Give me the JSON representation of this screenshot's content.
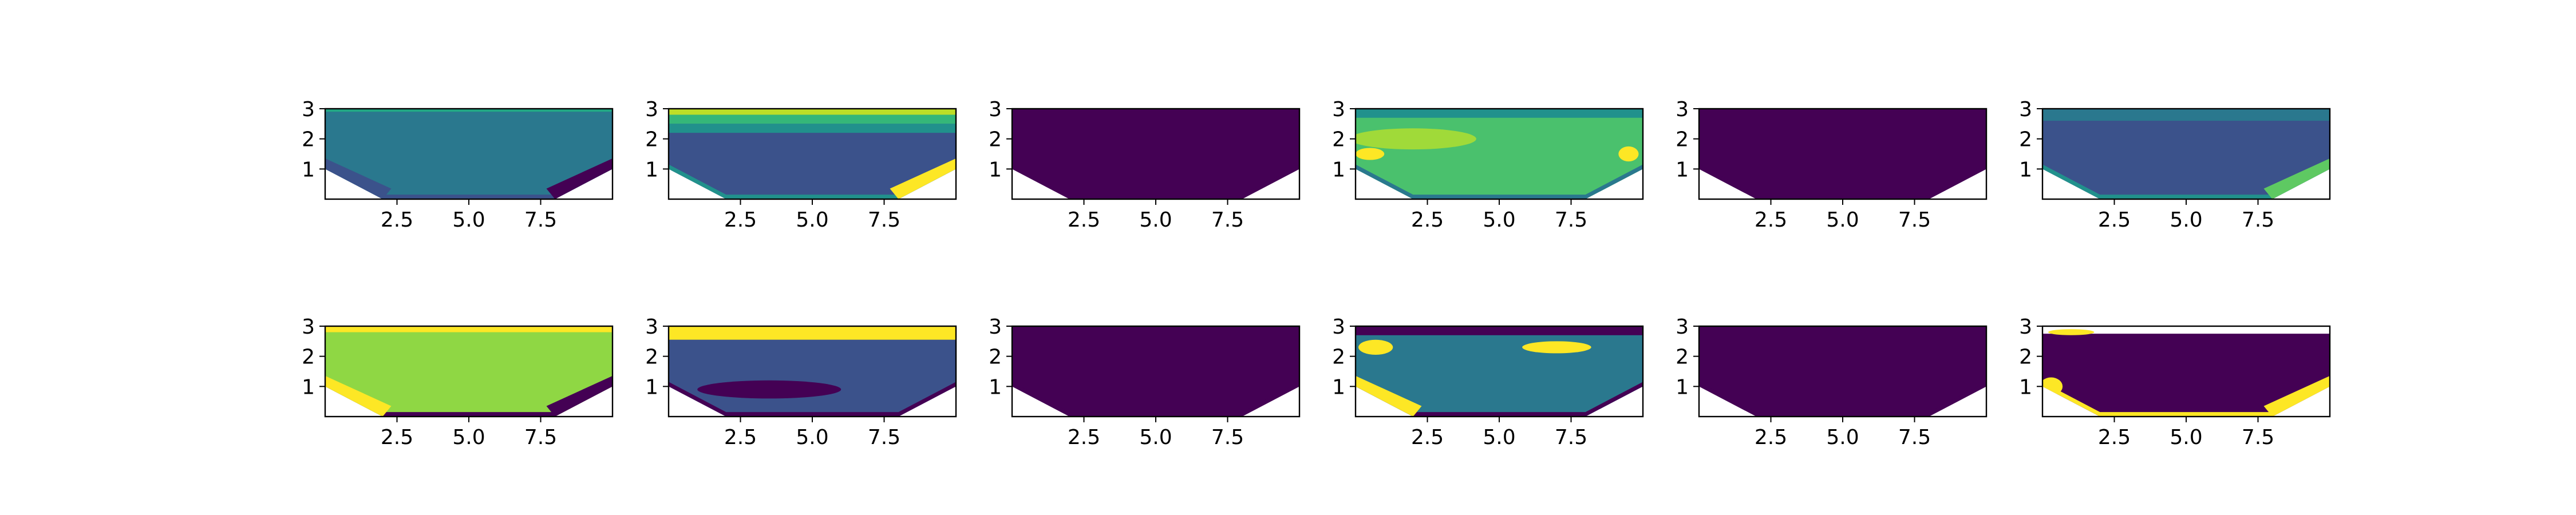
{
  "chart_data": {
    "type": "contour-grid",
    "rows": 2,
    "cols": 6,
    "xlim": [
      0,
      10
    ],
    "ylim": [
      0,
      3
    ],
    "xticks": [
      2.5,
      5.0,
      7.5
    ],
    "yticks": [
      1,
      2,
      3
    ],
    "xtick_labels": [
      "2.5",
      "5.0",
      "7.5"
    ],
    "ytick_labels": [
      "1",
      "2",
      "3"
    ],
    "domain_bottom_profile": [
      [
        0,
        1.0
      ],
      [
        2.0,
        0
      ],
      [
        8.0,
        0
      ],
      [
        10,
        1.0
      ]
    ],
    "colormap": "viridis",
    "panels": [
      {
        "id": "r1c1",
        "fill": "#2a788e",
        "edge": "#3b528b",
        "accents": [
          {
            "shape": "band",
            "y": [
              2.9,
              3.0
            ],
            "color": "#22a884"
          },
          {
            "shape": "corner-left",
            "color": "#3b528b"
          },
          {
            "shape": "corner-right",
            "color": "#440154"
          }
        ]
      },
      {
        "id": "r1c2",
        "fill": "#3b528b",
        "edge": "#21918c",
        "accents": [
          {
            "shape": "band",
            "y": [
              2.8,
              3.0
            ],
            "color": "#bddf26"
          },
          {
            "shape": "band",
            "y": [
              2.5,
              2.8
            ],
            "color": "#35b779"
          },
          {
            "shape": "band",
            "y": [
              2.2,
              2.5
            ],
            "color": "#21918c"
          },
          {
            "shape": "corner-right",
            "color": "#fde725"
          }
        ]
      },
      {
        "id": "r1c3",
        "fill": "#440154",
        "edge": "#440154",
        "accents": []
      },
      {
        "id": "r1c4",
        "fill": "#4ac16d",
        "edge": "#2a788e",
        "accents": [
          {
            "shape": "band",
            "y": [
              2.7,
              3.0
            ],
            "color": "#21918c"
          },
          {
            "shape": "blob",
            "cx": 2.0,
            "cy": 2.0,
            "rx": 2.2,
            "ry": 0.35,
            "color": "#a0da39"
          },
          {
            "shape": "blob",
            "cx": 0.5,
            "cy": 1.5,
            "rx": 0.5,
            "ry": 0.2,
            "color": "#fde725"
          },
          {
            "shape": "blob",
            "cx": 9.5,
            "cy": 1.5,
            "rx": 0.35,
            "ry": 0.25,
            "color": "#fde725"
          }
        ]
      },
      {
        "id": "r1c5",
        "fill": "#440154",
        "edge": "#440154",
        "accents": []
      },
      {
        "id": "r1c6",
        "fill": "#3b528b",
        "edge": "#21918c",
        "accents": [
          {
            "shape": "band",
            "y": [
              2.6,
              3.0
            ],
            "color": "#2a788e"
          },
          {
            "shape": "corner-right",
            "color": "#5ec962"
          }
        ]
      },
      {
        "id": "r2c1",
        "fill": "#8fd744",
        "edge": "#440154",
        "accents": [
          {
            "shape": "band",
            "y": [
              2.8,
              3.0
            ],
            "color": "#fde725"
          },
          {
            "shape": "corner-left",
            "color": "#fde725"
          },
          {
            "shape": "corner-right",
            "color": "#440154"
          }
        ]
      },
      {
        "id": "r2c2",
        "fill": "#3b528b",
        "edge": "#440154",
        "accents": [
          {
            "shape": "band",
            "y": [
              2.55,
              3.0
            ],
            "color": "#fde725"
          },
          {
            "shape": "blob",
            "cx": 3.5,
            "cy": 0.9,
            "rx": 2.5,
            "ry": 0.3,
            "color": "#440154"
          }
        ]
      },
      {
        "id": "r2c3",
        "fill": "#440154",
        "edge": "#440154",
        "accents": []
      },
      {
        "id": "r2c4",
        "fill": "#2a788e",
        "edge": "#440154",
        "accents": [
          {
            "shape": "band",
            "y": [
              2.7,
              3.0
            ],
            "color": "#440154"
          },
          {
            "shape": "blob",
            "cx": 0.7,
            "cy": 2.3,
            "rx": 0.6,
            "ry": 0.25,
            "color": "#fde725"
          },
          {
            "shape": "blob",
            "cx": 7.0,
            "cy": 2.3,
            "rx": 1.2,
            "ry": 0.2,
            "color": "#fde725"
          },
          {
            "shape": "corner-left",
            "color": "#fde725"
          }
        ]
      },
      {
        "id": "r2c5",
        "fill": "#440154",
        "edge": "#440154",
        "accents": []
      },
      {
        "id": "r2c6",
        "fill": "#440154",
        "edge": "#fde725",
        "accents": [
          {
            "shape": "band",
            "y": [
              2.75,
              3.0
            ],
            "color": "#ffffff"
          },
          {
            "shape": "blob",
            "cx": 1.0,
            "cy": 2.8,
            "rx": 0.8,
            "ry": 0.1,
            "color": "#fde725"
          },
          {
            "shape": "corner-right",
            "color": "#fde725"
          },
          {
            "shape": "blob",
            "cx": 0.3,
            "cy": 1.0,
            "rx": 0.4,
            "ry": 0.3,
            "color": "#fde725"
          }
        ]
      }
    ]
  }
}
